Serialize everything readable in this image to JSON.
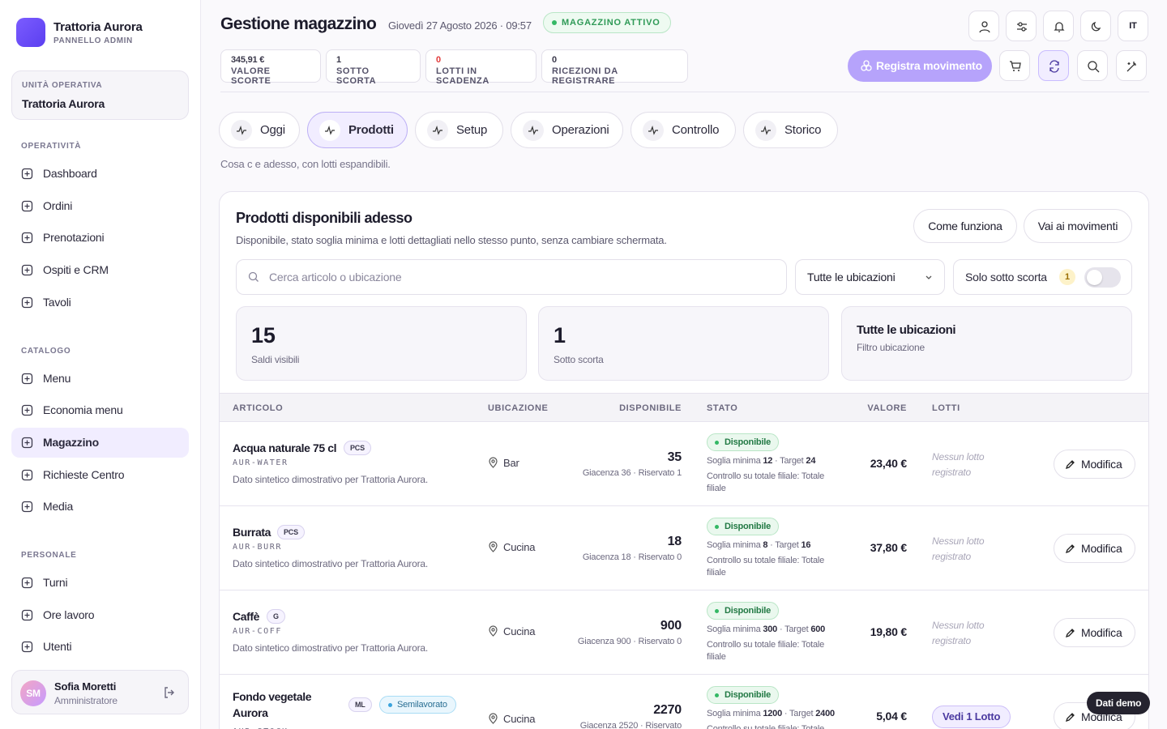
{
  "sidebar": {
    "brand": "Trattoria Aurora",
    "brand_sub": "PANNELLO ADMIN",
    "unit_label": "UNITÀ OPERATIVA",
    "unit": "Trattoria Aurora",
    "sections": [
      {
        "title": "OPERATIVITÀ",
        "items": [
          {
            "label": "Dashboard"
          },
          {
            "label": "Ordini"
          },
          {
            "label": "Prenotazioni"
          },
          {
            "label": "Ospiti e CRM"
          },
          {
            "label": "Tavoli"
          }
        ]
      },
      {
        "title": "CATALOGO",
        "items": [
          {
            "label": "Menu"
          },
          {
            "label": "Economia menu"
          },
          {
            "label": "Magazzino",
            "active": true
          },
          {
            "label": "Richieste Centro"
          },
          {
            "label": "Media"
          }
        ]
      },
      {
        "title": "PERSONALE",
        "items": [
          {
            "label": "Turni"
          },
          {
            "label": "Ore lavoro"
          },
          {
            "label": "Utenti"
          }
        ]
      }
    ],
    "user": {
      "initials": "SM",
      "name": "Sofia Moretti",
      "role": "Amministratore"
    }
  },
  "header": {
    "title": "Gestione magazzino",
    "datetime": "Giovedì 27 Agosto 2026 · 09:57",
    "status": "MAGAZZINO ATTIVO",
    "language": "IT",
    "register": "Registra movimento",
    "kpis": [
      {
        "value": "345,91 €",
        "label": "VALORE SCORTE"
      },
      {
        "value": 1,
        "label": "SOTTO SCORTA"
      },
      {
        "value": 0,
        "label": "LOTTI IN SCADENZA",
        "alert": true
      },
      {
        "value": 0,
        "label": "RICEZIONI DA REGISTRARE"
      }
    ]
  },
  "tabs": [
    {
      "label": "Oggi"
    },
    {
      "label": "Prodotti",
      "active": true
    },
    {
      "label": "Setup"
    },
    {
      "label": "Operazioni"
    },
    {
      "label": "Controllo"
    },
    {
      "label": "Storico"
    }
  ],
  "tab_hint": "Cosa c e adesso, con lotti espandibili.",
  "panel": {
    "title": "Prodotti disponibili adesso",
    "subtitle": "Disponibile, stato soglia minima e lotti dettagliati nello stesso punto, senza cambiare schermata.",
    "how": "Come funziona",
    "moves": "Vai ai movimenti",
    "search": "Cerca articolo o ubicazione",
    "location_filter": "Tutte le ubicazioni",
    "low_toggle": "Solo sotto scorta",
    "low_count": 1,
    "cards": [
      {
        "value": 15,
        "label": "Saldi visibili"
      },
      {
        "value": 1,
        "label": "Sotto scorta"
      },
      {
        "title": "Tutte le ubicazioni",
        "label": "Filtro ubicazione"
      }
    ],
    "columns": [
      "ARTICOLO",
      "UBICAZIONE",
      "DISPONIBILE",
      "STATO",
      "VALORE",
      "LOTTI"
    ],
    "row_action": "Modifica",
    "rows": [
      {
        "name": "Acqua naturale 75 cl",
        "unit": "PCS",
        "sku": "AUR-WATER",
        "desc": "Dato sintetico dimostrativo per Trattoria Aurora.",
        "location": "Bar",
        "available": 35,
        "detail": "Giacenza 36 · Riservato 1",
        "status": "Disponibile",
        "min_label": "Soglia minima",
        "min": 12,
        "target_label": "· Target",
        "target": 24,
        "control": "Controllo su totale filiale: Totale filiale",
        "value": "23,40 €",
        "lots": "Nessun lotto registrato"
      },
      {
        "name": "Burrata",
        "unit": "PCS",
        "sku": "AUR-BURR",
        "desc": "Dato sintetico dimostrativo per Trattoria Aurora.",
        "location": "Cucina",
        "available": 18,
        "detail": "Giacenza 18 · Riservato 0",
        "status": "Disponibile",
        "min_label": "Soglia minima",
        "min": 8,
        "target_label": "· Target",
        "target": 16,
        "control": "Controllo su totale filiale: Totale filiale",
        "value": "37,80 €",
        "lots": "Nessun lotto registrato"
      },
      {
        "name": "Caffè",
        "unit": "G",
        "sku": "AUR-COFF",
        "desc": "Dato sintetico dimostrativo per Trattoria Aurora.",
        "location": "Cucina",
        "available": 900,
        "detail": "Giacenza 900 · Riservato 0",
        "status": "Disponibile",
        "min_label": "Soglia minima",
        "min": 300,
        "target_label": "· Target",
        "target": 600,
        "control": "Controllo su totale filiale: Totale filiale",
        "value": "19,80 €",
        "lots": "Nessun lotto registrato"
      },
      {
        "name": "Fondo vegetale Aurora",
        "unit": "ML",
        "tag": "Semilavorato",
        "sku": "AUR-STOCK",
        "location": "Cucina",
        "available": 2270,
        "detail": "Giacenza 2520 · Riservato",
        "status": "Disponibile",
        "min_label": "Soglia minima",
        "min": 1200,
        "target_label": "· Target",
        "target": 2400,
        "control": "Controllo su totale filiale: Totale",
        "value": "5,04 €",
        "lots_link": "Vedi 1 Lotto"
      }
    ]
  },
  "demo_badge": "Dati demo"
}
